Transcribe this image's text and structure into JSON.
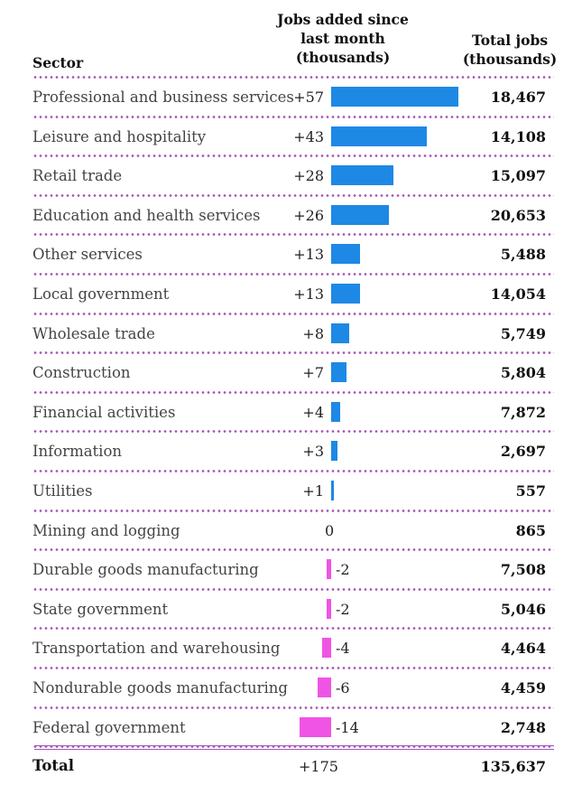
{
  "chart_data": {
    "type": "table",
    "headers": {
      "sector": "Sector",
      "jobs_added": "Jobs added since last month (thousands)",
      "total_jobs": "Total jobs (thousands)"
    },
    "colors": {
      "positive": "#1e88e5",
      "negative": "#f054e4",
      "separator": "#a455b8"
    },
    "rows": [
      {
        "sector": "Professional and business services",
        "change": 57,
        "change_label": "+57",
        "total": "18,467"
      },
      {
        "sector": "Leisure and hospitality",
        "change": 43,
        "change_label": "+43",
        "total": "14,108"
      },
      {
        "sector": "Retail trade",
        "change": 28,
        "change_label": "+28",
        "total": "15,097"
      },
      {
        "sector": "Education and health services",
        "change": 26,
        "change_label": "+26",
        "total": "20,653"
      },
      {
        "sector": "Other services",
        "change": 13,
        "change_label": "+13",
        "total": "5,488"
      },
      {
        "sector": "Local government",
        "change": 13,
        "change_label": "+13",
        "total": "14,054"
      },
      {
        "sector": "Wholesale trade",
        "change": 8,
        "change_label": "+8",
        "total": "5,749"
      },
      {
        "sector": "Construction",
        "change": 7,
        "change_label": "+7",
        "total": "5,804"
      },
      {
        "sector": "Financial activities",
        "change": 4,
        "change_label": "+4",
        "total": "7,872"
      },
      {
        "sector": "Information",
        "change": 3,
        "change_label": "+3",
        "total": "2,697"
      },
      {
        "sector": "Utilities",
        "change": 1,
        "change_label": "+1",
        "total": "557"
      },
      {
        "sector": "Mining and logging",
        "change": 0,
        "change_label": "0",
        "total": "865"
      },
      {
        "sector": "Durable goods manufacturing",
        "change": -2,
        "change_label": "-2",
        "total": "7,508"
      },
      {
        "sector": "State government",
        "change": -2,
        "change_label": "-2",
        "total": "5,046"
      },
      {
        "sector": "Transportation and warehousing",
        "change": -4,
        "change_label": "-4",
        "total": "4,464"
      },
      {
        "sector": "Nondurable goods manufacturing",
        "change": -6,
        "change_label": "-6",
        "total": "4,459"
      },
      {
        "sector": "Federal government",
        "change": -14,
        "change_label": "-14",
        "total": "2,748"
      }
    ],
    "total": {
      "label": "Total",
      "change_label": "+175",
      "total": "135,637"
    }
  }
}
